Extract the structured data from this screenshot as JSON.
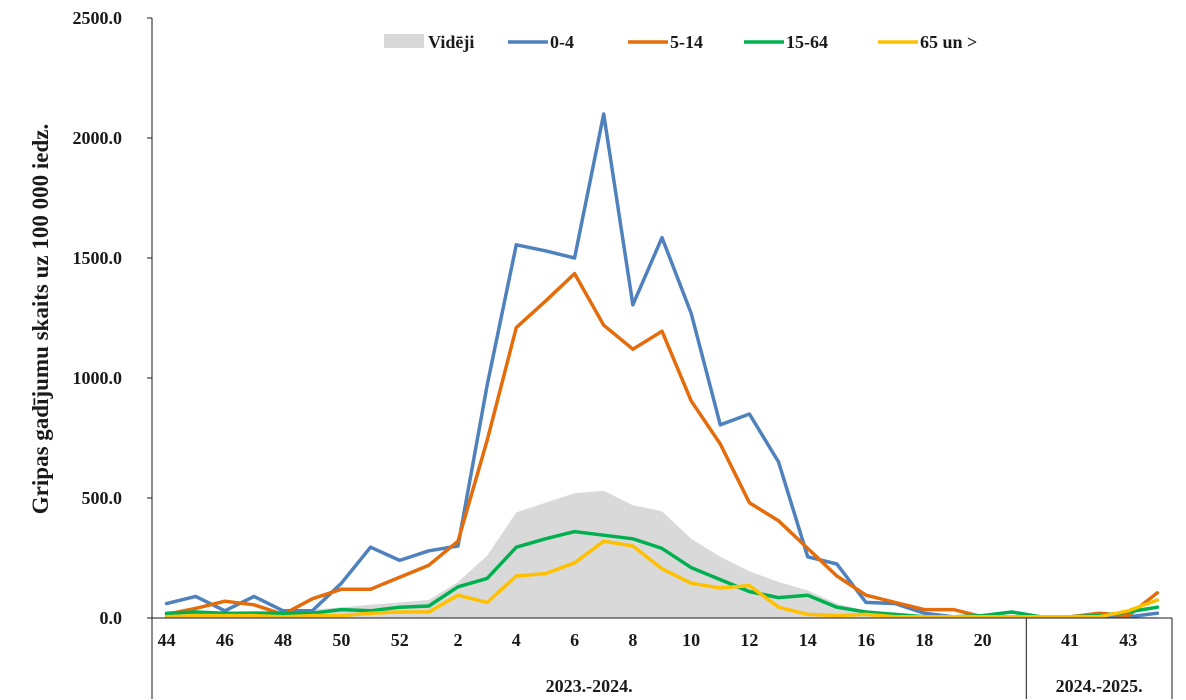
{
  "chart_data": {
    "type": "line",
    "ylabel": "Gripas gadījumu skaits uz 100 000 iedz.",
    "xlabel": "",
    "ylim": [
      0,
      2500
    ],
    "yticks": [
      "0.0",
      "500.0",
      "1000.0",
      "1500.0",
      "2000.0",
      "2500.0"
    ],
    "grid": false,
    "legend_position": "top",
    "x": [
      44,
      45,
      46,
      47,
      48,
      49,
      50,
      51,
      52,
      1,
      2,
      3,
      4,
      5,
      6,
      7,
      8,
      9,
      10,
      11,
      12,
      13,
      14,
      15,
      16,
      17,
      18,
      19,
      20,
      21,
      40,
      41,
      42,
      43,
      44
    ],
    "x_tick_labels": [
      "44",
      "46",
      "48",
      "50",
      "52",
      "2",
      "4",
      "6",
      "8",
      "10",
      "12",
      "14",
      "16",
      "18",
      "20",
      "41",
      "43"
    ],
    "groups": [
      {
        "label": "2023.-2024.",
        "x_from": 44,
        "x_to": 21
      },
      {
        "label": "2024.-2025.",
        "x_from": 40,
        "x_to": 44
      }
    ],
    "area": {
      "name": "Vidēji",
      "color": "#d9d9d9",
      "values": [
        15,
        20,
        25,
        30,
        30,
        35,
        45,
        55,
        65,
        75,
        150,
        260,
        440,
        480,
        520,
        530,
        470,
        445,
        330,
        255,
        195,
        150,
        115,
        60,
        30,
        15,
        10,
        8,
        5,
        5,
        5,
        5,
        5,
        5,
        5
      ]
    },
    "series": [
      {
        "name": "0-4",
        "color": "#4f81bd",
        "values": [
          60,
          90,
          30,
          90,
          30,
          30,
          145,
          295,
          240,
          280,
          300,
          970,
          1555,
          1530,
          1500,
          2100,
          1305,
          1585,
          1270,
          805,
          850,
          650,
          255,
          225,
          65,
          60,
          20,
          5,
          5,
          5,
          5,
          5,
          5,
          5,
          20
        ]
      },
      {
        "name": "5-14",
        "color": "#e46c0a",
        "values": [
          15,
          40,
          70,
          55,
          15,
          80,
          120,
          120,
          170,
          220,
          320,
          740,
          1210,
          1320,
          1435,
          1220,
          1120,
          1195,
          905,
          725,
          480,
          405,
          290,
          175,
          95,
          65,
          35,
          35,
          5,
          5,
          5,
          5,
          20,
          10,
          105
        ]
      },
      {
        "name": "15-64",
        "color": "#00b050",
        "values": [
          20,
          25,
          20,
          20,
          20,
          20,
          35,
          30,
          45,
          50,
          130,
          165,
          295,
          330,
          360,
          345,
          330,
          290,
          210,
          160,
          110,
          85,
          95,
          45,
          25,
          15,
          5,
          5,
          10,
          25,
          5,
          5,
          10,
          25,
          45
        ]
      },
      {
        "name": "65 un >",
        "color": "#ffc000",
        "values": [
          5,
          10,
          10,
          10,
          5,
          10,
          10,
          20,
          25,
          25,
          95,
          65,
          175,
          185,
          230,
          320,
          300,
          205,
          145,
          125,
          135,
          45,
          15,
          10,
          15,
          5,
          5,
          5,
          5,
          5,
          5,
          5,
          5,
          30,
          75
        ]
      }
    ]
  }
}
